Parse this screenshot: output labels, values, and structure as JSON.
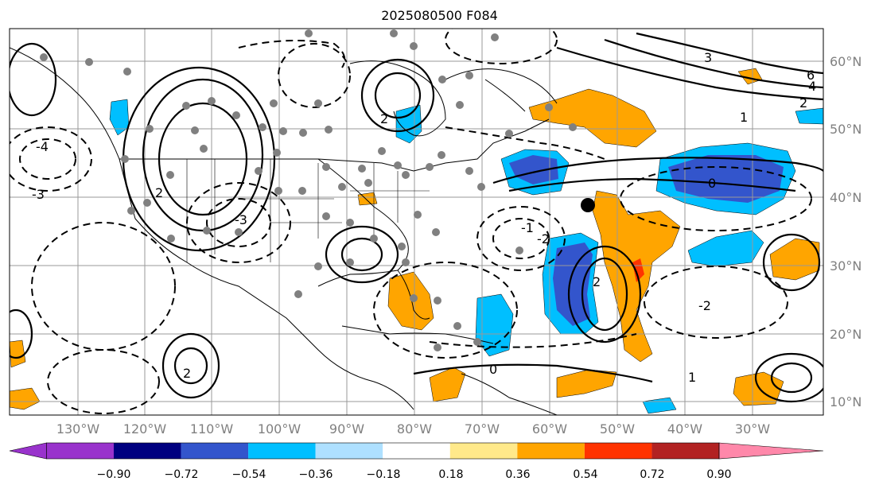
{
  "title": "2025080500 F084",
  "lon_labels": [
    "130°W",
    "120°W",
    "110°W",
    "100°W",
    "90°W",
    "80°W",
    "70°W",
    "60°W",
    "50°W",
    "40°W",
    "30°W"
  ],
  "lat_labels": [
    "60°N",
    "50°N",
    "40°N",
    "30°N",
    "20°N",
    "10°N"
  ],
  "colorbar": {
    "ticks": [
      "−0.90",
      "−0.72",
      "−0.54",
      "−0.36",
      "−0.18",
      "0.18",
      "0.36",
      "0.54",
      "0.72",
      "0.90"
    ],
    "colors": [
      "#9933cc",
      "#000080",
      "#3355cc",
      "#00bfff",
      "#aee0ff",
      "#ffffff",
      "#ffe98a",
      "#ffa500",
      "#ff3300",
      "#b22222",
      "#ff88aa"
    ]
  },
  "contour_labels": [
    "2",
    "6",
    "4",
    "2",
    "1",
    "0",
    "-1",
    "-2",
    "-3",
    "-4",
    "0",
    "1",
    "2",
    "-2",
    "-3",
    "3"
  ],
  "marker_color": "#000000",
  "station_color": "#808080"
}
